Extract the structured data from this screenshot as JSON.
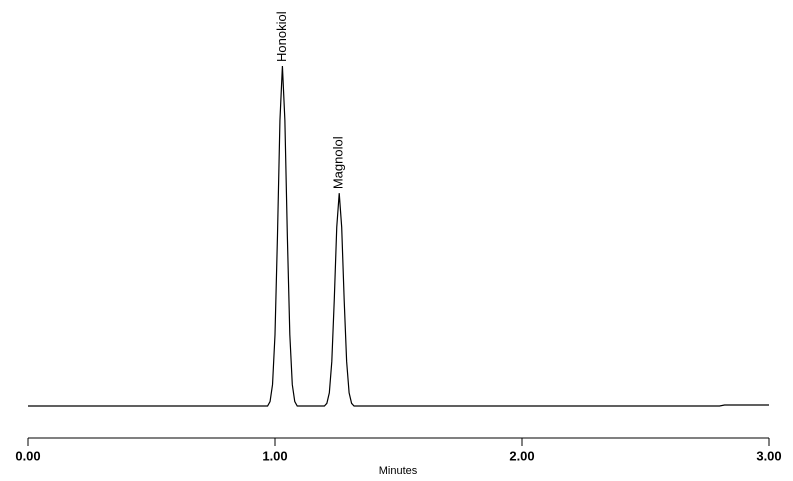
{
  "chart_data": {
    "type": "line",
    "x_label": "Minutes",
    "x": [
      0,
      0.5,
      0.95,
      0.97,
      0.98,
      0.99,
      1.0,
      1.01,
      1.02,
      1.03,
      1.04,
      1.05,
      1.06,
      1.07,
      1.08,
      1.09,
      1.2,
      1.21,
      1.22,
      1.23,
      1.24,
      1.25,
      1.26,
      1.27,
      1.28,
      1.29,
      1.3,
      1.31,
      1.32,
      2.8,
      2.82,
      3.0
    ],
    "series": [
      {
        "color": "#000000",
        "values": [
          0,
          0,
          0,
          0,
          0.013,
          0.063,
          0.21,
          0.5,
          0.84,
          1.0,
          0.84,
          0.5,
          0.21,
          0.063,
          0.013,
          0,
          0,
          0.008,
          0.039,
          0.131,
          0.313,
          0.526,
          0.626,
          0.526,
          0.313,
          0.131,
          0.039,
          0.008,
          0,
          0,
          0.003,
          0.003
        ]
      }
    ],
    "xlim": [
      0,
      3
    ],
    "xticks": [
      {
        "value": 0,
        "label": "0.00"
      },
      {
        "value": 1,
        "label": "1.00"
      },
      {
        "value": 2,
        "label": "2.00"
      },
      {
        "value": 3,
        "label": "3.00"
      }
    ],
    "ylim": [
      -0.1,
      1.1
    ],
    "annotations": [
      {
        "text": "Honokiol",
        "x": 1.03,
        "y": 1.0
      },
      {
        "text": "Magnolol",
        "x": 1.26,
        "y": 0.626
      }
    ]
  }
}
